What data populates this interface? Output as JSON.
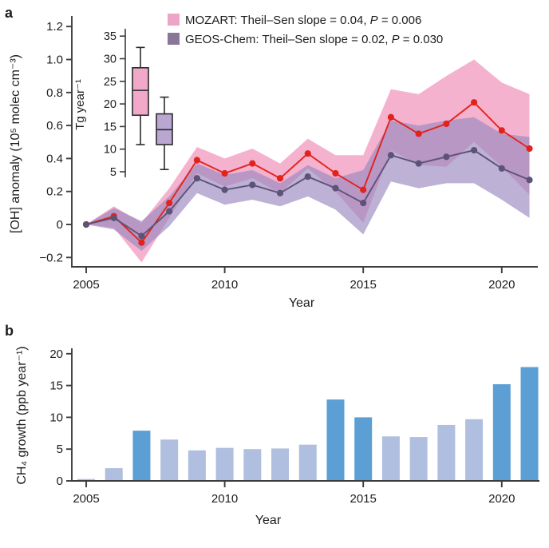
{
  "panels": {
    "a_label": "a",
    "b_label": "b"
  },
  "panel_a": {
    "ylabel": "[OH] anomaly (10⁵ molec cm⁻³)",
    "xlabel": "Year",
    "ytick_labels": [
      "1.2",
      "1.0",
      "0.8",
      "0.6",
      "0.4",
      "0.2",
      "0",
      "−0.2"
    ],
    "legend": [
      {
        "swatch": "#eda4c6",
        "text": "MOZART: Theil–Sen slope = 0.04, ",
        "p": "P",
        "p_rest": " = 0.006"
      },
      {
        "swatch": "#887797",
        "text": "GEOS-Chem: Theil–Sen slope = 0.02, ",
        "p": "P",
        "p_rest": " = 0.030"
      }
    ]
  },
  "inset": {
    "ylabel": "Tg year⁻¹"
  },
  "panel_b": {
    "ylabel": "CH₄ growth (ppb year⁻¹)",
    "xlabel": "Year"
  },
  "chart_data": [
    {
      "id": "panel_a",
      "type": "line",
      "xlabel": "Year",
      "ylabel": "[OH] anomaly (10⁵ molec cm⁻³)",
      "x": [
        2005,
        2006,
        2007,
        2008,
        2009,
        2010,
        2011,
        2012,
        2013,
        2014,
        2015,
        2016,
        2017,
        2018,
        2019,
        2020,
        2021
      ],
      "xticks": [
        2005,
        2010,
        2015,
        2020
      ],
      "yticks": [
        1.2,
        1.0,
        0.8,
        0.6,
        0.4,
        0.2,
        0,
        -0.2
      ],
      "ylim": [
        -0.28,
        1.26
      ],
      "grid": false,
      "legend_position": "top",
      "series": [
        {
          "name": "MOZART",
          "line_color": "#e2231d",
          "band_color": "#f3aecb",
          "values": [
            0.0,
            0.05,
            -0.11,
            0.13,
            0.39,
            0.31,
            0.37,
            0.28,
            0.43,
            0.31,
            0.21,
            0.65,
            0.55,
            0.61,
            0.74,
            0.57,
            0.46
          ],
          "band_lo": [
            0.0,
            -0.02,
            -0.23,
            0.04,
            0.31,
            0.23,
            0.28,
            0.19,
            0.34,
            0.2,
            0.01,
            0.45,
            0.36,
            0.35,
            0.5,
            0.35,
            0.18
          ],
          "band_hi": [
            0.0,
            0.11,
            0.01,
            0.22,
            0.47,
            0.4,
            0.46,
            0.37,
            0.52,
            0.42,
            0.42,
            0.82,
            0.79,
            0.9,
            1.0,
            0.86,
            0.79
          ],
          "theil_sen_slope": 0.04,
          "p_value": 0.006
        },
        {
          "name": "GEOS-Chem",
          "line_color": "#5c5377",
          "band_color": "#9b88c0",
          "values": [
            0.0,
            0.04,
            -0.07,
            0.08,
            0.28,
            0.21,
            0.24,
            0.19,
            0.29,
            0.22,
            0.13,
            0.42,
            0.37,
            0.41,
            0.45,
            0.34,
            0.27
          ],
          "band_lo": [
            0.0,
            -0.03,
            -0.16,
            -0.01,
            0.19,
            0.12,
            0.15,
            0.11,
            0.17,
            0.09,
            -0.06,
            0.26,
            0.22,
            0.25,
            0.25,
            0.15,
            0.04
          ],
          "band_hi": [
            0.0,
            0.1,
            0.02,
            0.17,
            0.37,
            0.3,
            0.33,
            0.25,
            0.36,
            0.28,
            0.33,
            0.63,
            0.6,
            0.63,
            0.65,
            0.55,
            0.53
          ],
          "theil_sen_slope": 0.02,
          "p_value": 0.03
        }
      ]
    },
    {
      "id": "inset_boxplot",
      "type": "boxplot",
      "ylabel": "Tg year⁻¹",
      "yticks": [
        5,
        10,
        15,
        20,
        25,
        30,
        35
      ],
      "boxes": [
        {
          "name": "MOZART",
          "fill": "#f2a8c8",
          "whisker_low": 11,
          "q1": 17.5,
          "median": 23,
          "q3": 28,
          "whisker_high": 32.5
        },
        {
          "name": "GEOS-Chem",
          "fill": "#b9a7d2",
          "whisker_low": 5.5,
          "q1": 11,
          "median": 14.3,
          "q3": 17.8,
          "whisker_high": 21.5
        }
      ]
    },
    {
      "id": "panel_b",
      "type": "bar",
      "xlabel": "Year",
      "ylabel": "CH₄ growth (ppb year⁻¹)",
      "categories": [
        2005,
        2006,
        2007,
        2008,
        2009,
        2010,
        2011,
        2012,
        2013,
        2014,
        2015,
        2016,
        2017,
        2018,
        2019,
        2020,
        2021
      ],
      "values": [
        0.3,
        2.0,
        7.9,
        6.5,
        4.8,
        5.2,
        5.0,
        5.1,
        5.7,
        12.8,
        10.0,
        7.0,
        6.9,
        8.8,
        9.7,
        15.2,
        17.9
      ],
      "dark_years": [
        2007,
        2014,
        2015,
        2020,
        2021
      ],
      "bar_color_light": "#b0bfe0",
      "bar_color_dark": "#5b9fd4",
      "xticks": [
        2005,
        2010,
        2015,
        2020
      ],
      "yticks": [
        0,
        5,
        10,
        15,
        20
      ],
      "ylim": [
        0,
        21
      ]
    }
  ]
}
